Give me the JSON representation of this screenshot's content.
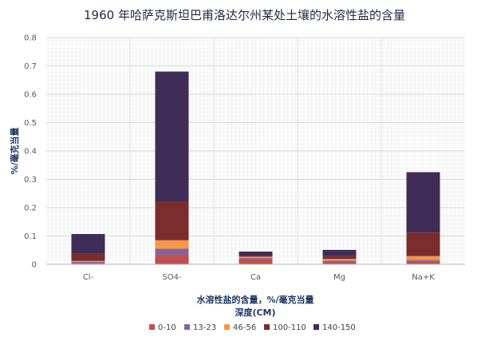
{
  "chart_data": {
    "type": "bar",
    "stacked": true,
    "title": "1960 年哈萨克斯坦巴甫洛达尔州某处土壤的水溶性盐的含量",
    "xlabel": "水溶性盐的含量，%/毫克当量",
    "xlabel2": "深度(CM)",
    "ylabel": "%/毫克当量",
    "ylim": [
      0,
      0.8
    ],
    "yticks": [
      0,
      0.1,
      0.2,
      0.3,
      0.4,
      0.5,
      0.6,
      0.7,
      0.8
    ],
    "ytick_labels": [
      "0",
      "0.1",
      "0.2",
      "0.3",
      "0.4",
      "0.5",
      "0.6",
      "0.7",
      "0.8"
    ],
    "categories": [
      "Cl-",
      "SO4-",
      "Ca",
      "Mg",
      "Na+K"
    ],
    "series": [
      {
        "name": "0-10",
        "color": "#c0504d",
        "values": [
          0.005,
          0.035,
          0.02,
          0.007,
          0.012
        ]
      },
      {
        "name": "13-23",
        "color": "#8064a2",
        "values": [
          0.004,
          0.02,
          0.003,
          0.006,
          0.004
        ]
      },
      {
        "name": "46-56",
        "color": "#f79646",
        "values": [
          0.003,
          0.03,
          0.004,
          0.006,
          0.013
        ]
      },
      {
        "name": "100-110",
        "color": "#7b2c2c",
        "values": [
          0.025,
          0.135,
          0.004,
          0.01,
          0.083
        ]
      },
      {
        "name": "140-150",
        "color": "#3f2d57",
        "values": [
          0.07,
          0.46,
          0.014,
          0.022,
          0.213
        ]
      }
    ],
    "legend_position": "bottom"
  }
}
